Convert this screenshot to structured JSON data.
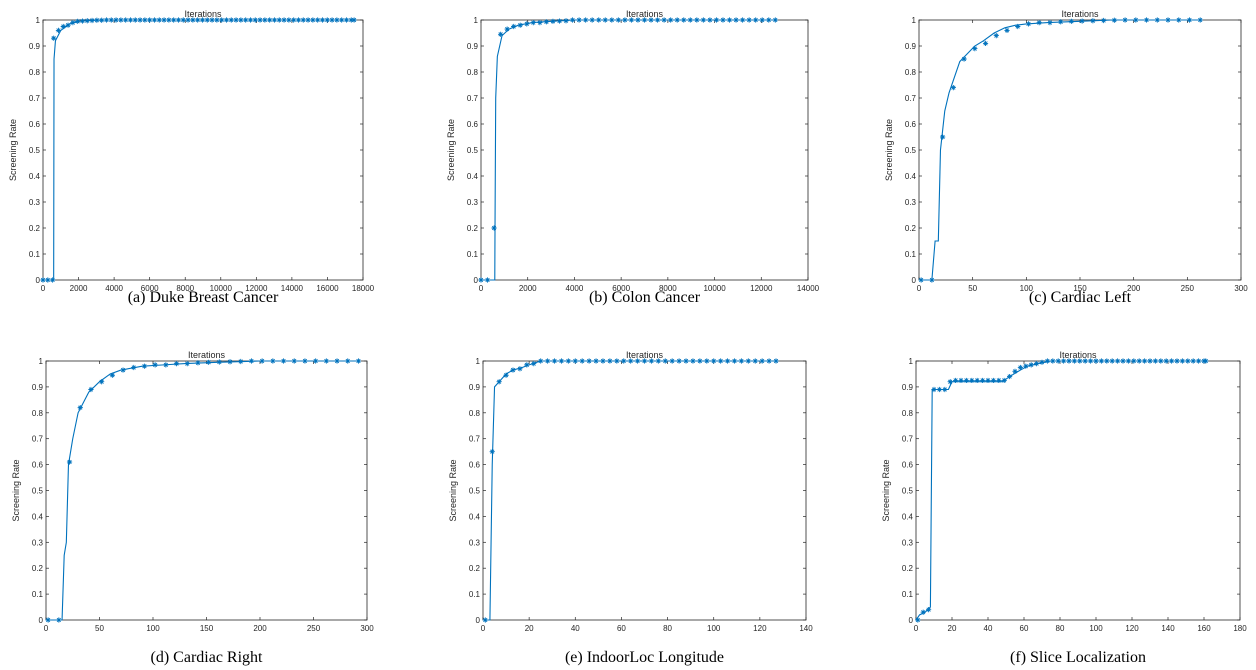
{
  "chart_data": [
    {
      "type": "line",
      "title": "Iterations",
      "ylabel": "Screening Rate",
      "caption": "(a) Duke Breast Cancer",
      "xlim": [
        0,
        18000
      ],
      "ylim": [
        0,
        1
      ],
      "x_ticks": [
        "0",
        "2000",
        "4000",
        "6000",
        "8000",
        "10000",
        "12000",
        "14000",
        "16000",
        "18000"
      ],
      "y_ticks": [
        "0",
        "0.1",
        "0.2",
        "0.3",
        "0.4",
        "0.5",
        "0.6",
        "0.7",
        "0.8",
        "0.9",
        "1"
      ],
      "line_points": [
        [
          0,
          0
        ],
        [
          600,
          0
        ],
        [
          620,
          0.85
        ],
        [
          700,
          0.92
        ],
        [
          1000,
          0.96
        ],
        [
          1500,
          0.985
        ],
        [
          2000,
          0.995
        ],
        [
          3000,
          1.0
        ],
        [
          17500,
          1.0
        ]
      ],
      "markers": [
        [
          0,
          0
        ],
        [
          270,
          0
        ],
        [
          540,
          0
        ],
        [
          600,
          0.93
        ],
        [
          870,
          0.96
        ],
        [
          1140,
          0.975
        ],
        [
          1410,
          0.98
        ],
        [
          1680,
          0.99
        ],
        [
          1950,
          0.995
        ],
        [
          2220,
          0.996
        ],
        [
          2490,
          0.997
        ],
        [
          2760,
          0.998
        ],
        [
          3030,
          0.999
        ],
        [
          3300,
          0.999
        ],
        [
          17500,
          1.0
        ]
      ],
      "marker_step_after": 270,
      "series_color": "#0072BD",
      "grid": false
    },
    {
      "type": "line",
      "title": "Iterations",
      "ylabel": "Screening Rate",
      "caption": "(b) Colon Cancer",
      "xlim": [
        0,
        14000
      ],
      "ylim": [
        0,
        1
      ],
      "x_ticks": [
        "0",
        "2000",
        "4000",
        "6000",
        "8000",
        "10000",
        "12000",
        "14000"
      ],
      "y_ticks": [
        "0",
        "0.1",
        "0.2",
        "0.3",
        "0.4",
        "0.5",
        "0.6",
        "0.7",
        "0.8",
        "0.9",
        "1"
      ],
      "line_points": [
        [
          0,
          0
        ],
        [
          590,
          0
        ],
        [
          600,
          0.2
        ],
        [
          630,
          0.7
        ],
        [
          700,
          0.86
        ],
        [
          900,
          0.94
        ],
        [
          1200,
          0.965
        ],
        [
          1600,
          0.98
        ],
        [
          2200,
          0.99
        ],
        [
          3000,
          0.995
        ],
        [
          4000,
          1.0
        ],
        [
          12600,
          1.0
        ]
      ],
      "markers": [
        [
          0,
          0
        ],
        [
          280,
          0
        ],
        [
          560,
          0.2
        ],
        [
          840,
          0.945
        ],
        [
          1120,
          0.965
        ],
        [
          1400,
          0.975
        ],
        [
          1680,
          0.98
        ],
        [
          1960,
          0.985
        ],
        [
          2240,
          0.99
        ],
        [
          2520,
          0.99
        ],
        [
          2800,
          0.993
        ],
        [
          3080,
          0.995
        ],
        [
          3360,
          0.996
        ],
        [
          3640,
          0.997
        ],
        [
          12600,
          1.0
        ]
      ],
      "marker_step_after": 280,
      "series_color": "#0072BD",
      "grid": false
    },
    {
      "type": "line",
      "title": "Iterations",
      "ylabel": "Screening Rate",
      "caption": "(c) Cardiac Left",
      "xlim": [
        0,
        300
      ],
      "ylim": [
        0,
        1
      ],
      "x_ticks": [
        "0",
        "50",
        "100",
        "150",
        "200",
        "250",
        "300"
      ],
      "y_ticks": [
        "0",
        "0.1",
        "0.2",
        "0.3",
        "0.4",
        "0.5",
        "0.6",
        "0.7",
        "0.8",
        "0.9",
        "1"
      ],
      "line_points": [
        [
          0,
          0
        ],
        [
          12,
          0
        ],
        [
          15,
          0.15
        ],
        [
          18,
          0.15
        ],
        [
          20,
          0.5
        ],
        [
          24,
          0.65
        ],
        [
          28,
          0.72
        ],
        [
          33,
          0.78
        ],
        [
          38,
          0.84
        ],
        [
          45,
          0.87
        ],
        [
          52,
          0.9
        ],
        [
          60,
          0.92
        ],
        [
          70,
          0.95
        ],
        [
          80,
          0.97
        ],
        [
          90,
          0.98
        ],
        [
          100,
          0.985
        ],
        [
          120,
          0.99
        ],
        [
          150,
          0.995
        ],
        [
          180,
          1.0
        ],
        [
          262,
          1.0
        ]
      ],
      "markers": [
        [
          2,
          0
        ],
        [
          12,
          0
        ],
        [
          22,
          0.55
        ],
        [
          32,
          0.74
        ],
        [
          42,
          0.85
        ],
        [
          52,
          0.89
        ],
        [
          62,
          0.91
        ],
        [
          72,
          0.94
        ],
        [
          82,
          0.96
        ],
        [
          92,
          0.975
        ],
        [
          102,
          0.985
        ],
        [
          112,
          0.99
        ],
        [
          122,
          0.99
        ],
        [
          132,
          0.993
        ],
        [
          142,
          0.995
        ],
        [
          152,
          0.996
        ],
        [
          162,
          0.997
        ],
        [
          172,
          0.998
        ],
        [
          182,
          0.999
        ],
        [
          262,
          1.0
        ]
      ],
      "marker_step_after": 10,
      "series_color": "#0072BD",
      "grid": false
    },
    {
      "type": "line",
      "title": "Iterations",
      "ylabel": "Screening Rate",
      "caption": "(d) Cardiac Right",
      "xlim": [
        0,
        300
      ],
      "ylim": [
        0,
        1
      ],
      "x_ticks": [
        "0",
        "50",
        "100",
        "150",
        "200",
        "250",
        "300"
      ],
      "y_ticks": [
        "0",
        "0.1",
        "0.2",
        "0.3",
        "0.4",
        "0.5",
        "0.6",
        "0.7",
        "0.8",
        "0.9",
        "1"
      ],
      "line_points": [
        [
          0,
          0
        ],
        [
          15,
          0
        ],
        [
          17,
          0.25
        ],
        [
          19,
          0.3
        ],
        [
          21,
          0.6
        ],
        [
          25,
          0.7
        ],
        [
          30,
          0.8
        ],
        [
          40,
          0.88
        ],
        [
          50,
          0.92
        ],
        [
          60,
          0.95
        ],
        [
          70,
          0.965
        ],
        [
          90,
          0.98
        ],
        [
          110,
          0.985
        ],
        [
          130,
          0.99
        ],
        [
          160,
          0.995
        ],
        [
          200,
          1.0
        ],
        [
          292,
          1.0
        ]
      ],
      "markers": [
        [
          2,
          0
        ],
        [
          12,
          0
        ],
        [
          22,
          0.61
        ],
        [
          32,
          0.82
        ],
        [
          42,
          0.89
        ],
        [
          52,
          0.92
        ],
        [
          62,
          0.945
        ],
        [
          72,
          0.965
        ],
        [
          82,
          0.975
        ],
        [
          92,
          0.98
        ],
        [
          102,
          0.985
        ],
        [
          112,
          0.985
        ],
        [
          122,
          0.99
        ],
        [
          132,
          0.99
        ],
        [
          142,
          0.993
        ],
        [
          152,
          0.995
        ],
        [
          162,
          0.996
        ],
        [
          172,
          0.997
        ],
        [
          182,
          0.998
        ],
        [
          292,
          1.0
        ]
      ],
      "marker_step_after": 10,
      "series_color": "#0072BD",
      "grid": false
    },
    {
      "type": "line",
      "title": "Iterations",
      "ylabel": "Screening Rate",
      "caption": "(e) IndoorLoc Longitude",
      "xlim": [
        0,
        140
      ],
      "ylim": [
        0,
        1
      ],
      "x_ticks": [
        "0",
        "20",
        "40",
        "60",
        "80",
        "100",
        "120",
        "140"
      ],
      "y_ticks": [
        "0",
        "0.1",
        "0.2",
        "0.3",
        "0.4",
        "0.5",
        "0.6",
        "0.7",
        "0.8",
        "0.9",
        "1"
      ],
      "line_points": [
        [
          0,
          0
        ],
        [
          3,
          0
        ],
        [
          4,
          0.6
        ],
        [
          5,
          0.9
        ],
        [
          7,
          0.92
        ],
        [
          10,
          0.95
        ],
        [
          13,
          0.965
        ],
        [
          17,
          0.975
        ],
        [
          20,
          0.985
        ],
        [
          25,
          1.0
        ],
        [
          127,
          1.0
        ]
      ],
      "markers": [
        [
          1,
          0
        ],
        [
          4,
          0.65
        ],
        [
          7,
          0.92
        ],
        [
          10,
          0.945
        ],
        [
          13,
          0.965
        ],
        [
          16,
          0.97
        ],
        [
          19,
          0.985
        ],
        [
          22,
          0.99
        ],
        [
          25,
          1.0
        ],
        [
          28,
          1.0
        ],
        [
          127,
          1.0
        ]
      ],
      "marker_step_after": 3,
      "series_color": "#0072BD",
      "grid": false
    },
    {
      "type": "line",
      "title": "Iterations",
      "ylabel": "Screening Rate",
      "caption": "(f) Slice Localization",
      "xlim": [
        0,
        180
      ],
      "ylim": [
        0,
        1
      ],
      "x_ticks": [
        "0",
        "20",
        "40",
        "60",
        "80",
        "100",
        "120",
        "140",
        "160",
        "180"
      ],
      "y_ticks": [
        "0",
        "0.1",
        "0.2",
        "0.3",
        "0.4",
        "0.5",
        "0.6",
        "0.7",
        "0.8",
        "0.9",
        "1"
      ],
      "line_points": [
        [
          0,
          0
        ],
        [
          2,
          0.02
        ],
        [
          5,
          0.03
        ],
        [
          8,
          0.05
        ],
        [
          9,
          0.89
        ],
        [
          18,
          0.89
        ],
        [
          20,
          0.92
        ],
        [
          48,
          0.92
        ],
        [
          52,
          0.94
        ],
        [
          58,
          0.965
        ],
        [
          62,
          0.98
        ],
        [
          68,
          0.99
        ],
        [
          75,
          1.0
        ],
        [
          161,
          1.0
        ]
      ],
      "markers": [
        [
          1,
          0
        ],
        [
          4,
          0.03
        ],
        [
          7,
          0.04
        ],
        [
          10,
          0.89
        ],
        [
          13,
          0.89
        ],
        [
          16,
          0.89
        ],
        [
          19,
          0.92
        ],
        [
          22,
          0.925
        ],
        [
          25,
          0.925
        ],
        [
          28,
          0.925
        ],
        [
          31,
          0.925
        ],
        [
          34,
          0.925
        ],
        [
          37,
          0.925
        ],
        [
          40,
          0.925
        ],
        [
          43,
          0.925
        ],
        [
          46,
          0.925
        ],
        [
          49,
          0.925
        ],
        [
          52,
          0.94
        ],
        [
          55,
          0.96
        ],
        [
          58,
          0.975
        ],
        [
          61,
          0.98
        ],
        [
          64,
          0.985
        ],
        [
          67,
          0.99
        ],
        [
          70,
          0.995
        ],
        [
          73,
          1.0
        ],
        [
          161,
          1.0
        ]
      ],
      "marker_step_after": 3,
      "series_color": "#0072BD",
      "grid": false
    }
  ]
}
